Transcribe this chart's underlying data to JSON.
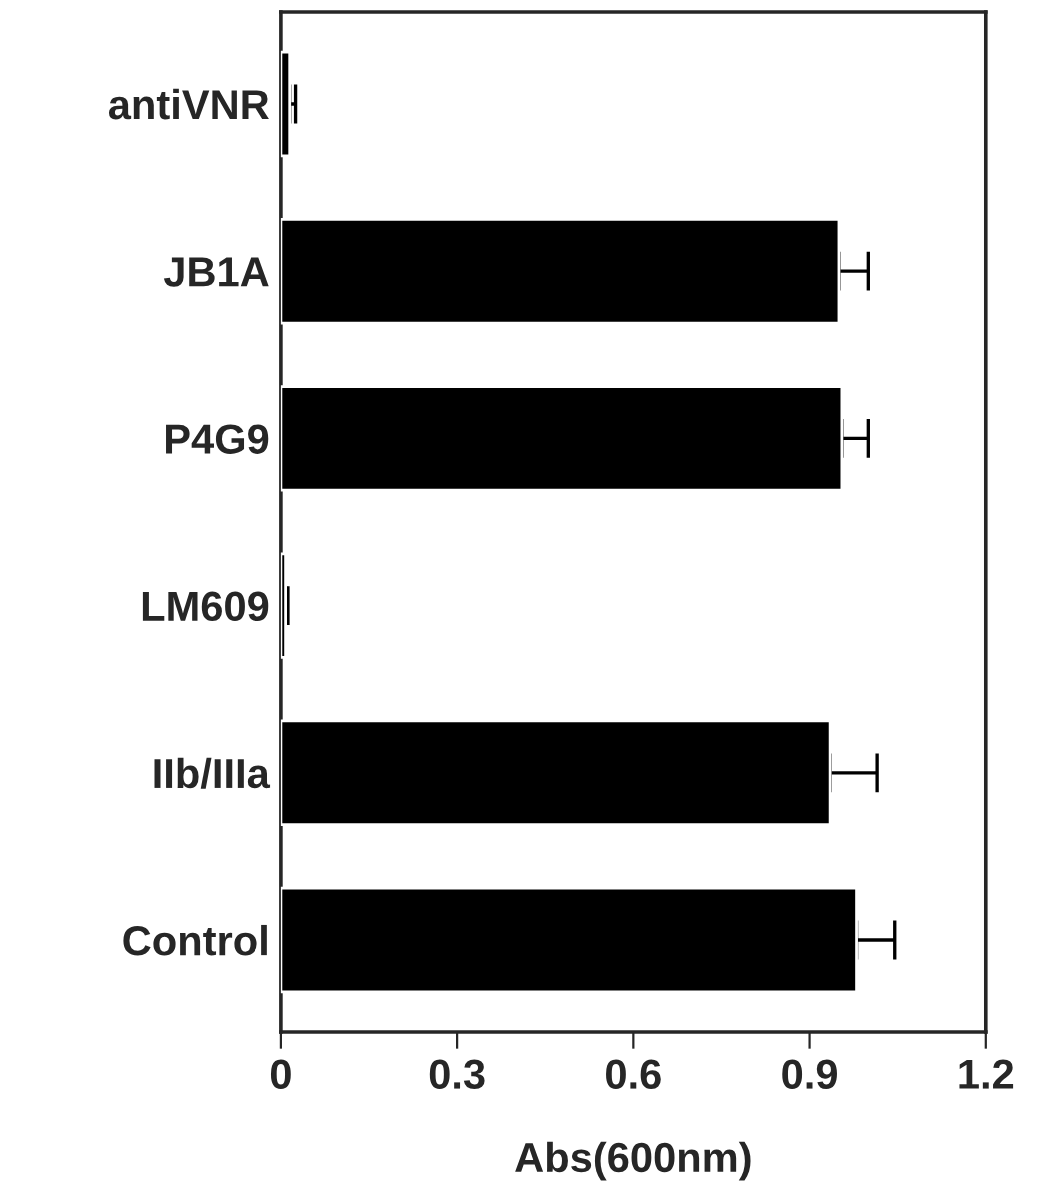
{
  "chart_data": {
    "type": "bar",
    "orientation": "horizontal",
    "xlabel": "Abs(600nm)",
    "categories": [
      "antiVNR",
      "JB1A",
      "P4G9",
      "LM609",
      "IIb/IIIa",
      "Control"
    ],
    "values": [
      0.015,
      0.95,
      0.955,
      0.008,
      0.935,
      0.98
    ],
    "errors": [
      [
        0.015,
        0.025
      ],
      [
        0.95,
        1.0
      ],
      [
        0.955,
        1.0
      ],
      [
        0.008,
        0.012
      ],
      [
        0.935,
        1.015
      ],
      [
        0.98,
        1.045
      ]
    ],
    "color": "#000000",
    "xlim": [
      0,
      1.2
    ],
    "xticks": [
      0,
      0.3,
      0.6,
      0.9,
      1.2
    ],
    "grid": false,
    "legend": false
  }
}
